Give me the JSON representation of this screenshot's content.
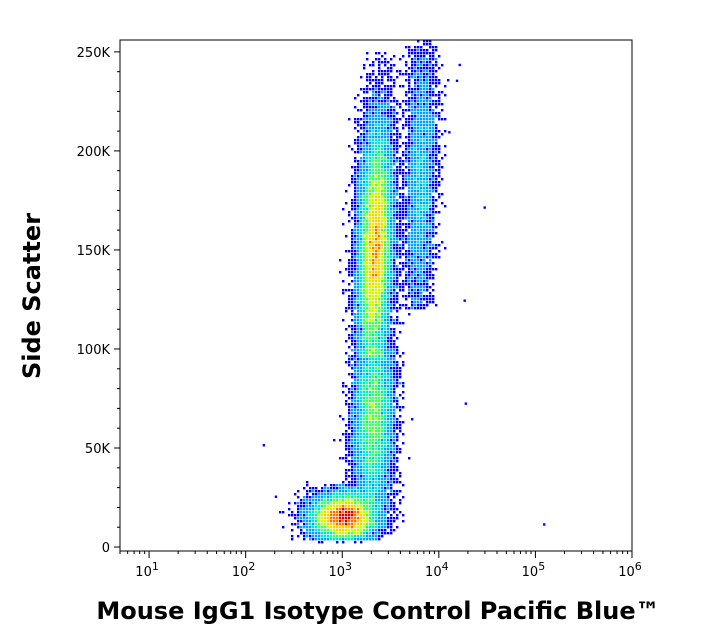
{
  "chart_data": {
    "type": "scatter",
    "subtype": "density-dot-plot",
    "title": "",
    "xlabel": "Mouse IgG1 Isotype Control Pacific Blue™",
    "ylabel": "Side Scatter",
    "x_scale": "log",
    "xlim": [
      5,
      1000000
    ],
    "ylim": [
      -2000,
      256000
    ],
    "x_ticks": [
      {
        "value": 10,
        "base": "10",
        "exp": "1"
      },
      {
        "value": 100,
        "base": "10",
        "exp": "2"
      },
      {
        "value": 1000,
        "base": "10",
        "exp": "3"
      },
      {
        "value": 10000,
        "base": "10",
        "exp": "4"
      },
      {
        "value": 100000,
        "base": "10",
        "exp": "5"
      },
      {
        "value": 1000000,
        "base": "10",
        "exp": "6"
      }
    ],
    "y_ticks": [
      {
        "value": 0,
        "label": "0"
      },
      {
        "value": 50000,
        "label": "50K"
      },
      {
        "value": 100000,
        "label": "100K"
      },
      {
        "value": 150000,
        "label": "150K"
      },
      {
        "value": 200000,
        "label": "200K"
      },
      {
        "value": 250000,
        "label": "250K"
      }
    ],
    "grid": false,
    "density_colormap": [
      "#0000ff",
      "#00a0ff",
      "#00e5d0",
      "#40ff60",
      "#c8ff00",
      "#ffd000",
      "#ff7000",
      "#e00000"
    ],
    "populations": [
      {
        "x_center": 2200,
        "x_spread_log10": 0.085,
        "y_center": 150000,
        "y_spread": 32000,
        "y_min": 95000,
        "y_max": 250000,
        "tilt_log10_per_100k": 0.06,
        "weight": 1.0
      },
      {
        "x_center": 2100,
        "x_spread_log10": 0.1,
        "y_center": 65000,
        "y_spread": 25000,
        "y_min": 20000,
        "y_max": 100000,
        "tilt_log10_per_100k": 0.05,
        "weight": 0.45
      },
      {
        "x_center": 1050,
        "x_spread_log10": 0.17,
        "y_center": 15000,
        "y_spread": 6000,
        "y_min": 3000,
        "y_max": 32000,
        "tilt_log10_per_100k": 0,
        "weight": 0.55
      },
      {
        "x_center": 6500,
        "x_spread_log10": 0.08,
        "y_center": 185000,
        "y_spread": 35000,
        "y_min": 120000,
        "y_max": 256000,
        "tilt_log10_per_100k": 0.05,
        "weight": 0.18
      }
    ],
    "outliers": [
      {
        "x": 120000,
        "y": 12000
      },
      {
        "x": 29000,
        "y": 172000
      },
      {
        "x": 18000,
        "y": 125000
      },
      {
        "x": 16000,
        "y": 244000
      },
      {
        "x": 15000,
        "y": 236000
      },
      {
        "x": 12500,
        "y": 210000
      },
      {
        "x": 200,
        "y": 26000
      },
      {
        "x": 150,
        "y": 52000
      },
      {
        "x": 18500,
        "y": 73000
      }
    ]
  }
}
